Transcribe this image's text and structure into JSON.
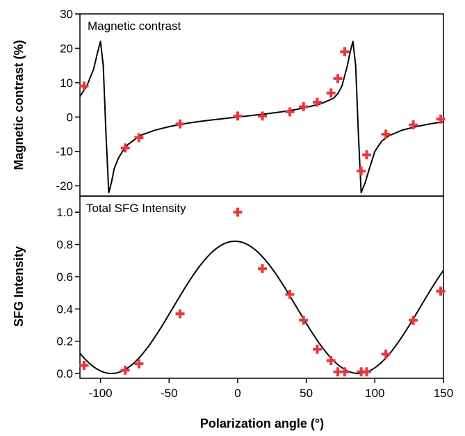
{
  "chart_data": [
    {
      "type": "scatter",
      "title": "Magnetic contrast",
      "ylabel": "Magnetic contrast (%)",
      "xlabel": "",
      "xlim": [
        -115,
        150
      ],
      "ylim": [
        -23,
        30
      ],
      "yticks": [
        30,
        20,
        10,
        0,
        -10,
        -20
      ],
      "yticklabels": [
        "30",
        "20",
        "10",
        "0",
        "-10",
        "-20"
      ],
      "marker_color": "#e8393a",
      "line_color": "#000000",
      "series": [
        {
          "kind": "markers",
          "x": [
            -112,
            -82,
            -72,
            -42,
            0,
            18,
            38,
            48,
            58,
            68,
            73,
            78,
            90,
            94,
            108,
            128,
            148
          ],
          "y": [
            9,
            -9,
            -6,
            -2,
            0.3,
            0.3,
            1.5,
            3,
            4.3,
            7,
            11.2,
            19,
            -15.7,
            -11,
            -5,
            -2.3,
            -0.6
          ]
        },
        {
          "kind": "line",
          "x": [
            -115,
            -110,
            -105,
            -102,
            -100,
            -98,
            -96,
            -94,
            -92,
            -90,
            -87,
            -84,
            -80,
            -75,
            -70,
            -60,
            -50,
            -40,
            -30,
            -20,
            -10,
            0,
            10,
            20,
            30,
            40,
            50,
            55,
            60,
            65,
            70,
            73,
            76,
            78,
            80,
            82,
            84,
            86,
            88,
            90,
            93,
            96,
            100,
            105,
            110,
            120,
            130,
            140,
            150
          ],
          "y": [
            6,
            9,
            14,
            19,
            22,
            15,
            -5,
            -22,
            -19,
            -15,
            -12,
            -10,
            -8,
            -6.5,
            -5.2,
            -3.8,
            -2.8,
            -2,
            -1.4,
            -0.9,
            -0.45,
            0,
            0.45,
            0.9,
            1.4,
            2,
            2.8,
            3.3,
            3.8,
            4.6,
            5.5,
            6.8,
            9,
            12,
            15,
            19,
            22,
            15,
            -5,
            -22,
            -19,
            -15,
            -10,
            -7,
            -5.5,
            -3.8,
            -2.8,
            -2,
            -1.4
          ]
        }
      ]
    },
    {
      "type": "scatter",
      "title": "Total SFG Intensity",
      "ylabel": "SFG Intensity",
      "xlabel": "Polarization angle (°)",
      "xlim": [
        -115,
        150
      ],
      "ylim": [
        -0.03,
        1.1
      ],
      "yticks": [
        1.0,
        0.8,
        0.6,
        0.4,
        0.2,
        0.0
      ],
      "yticklabels": [
        "1.0",
        "0.8",
        "0.6",
        "0.4",
        "0.2",
        "0.0"
      ],
      "xticks": [
        -100,
        -50,
        0,
        50,
        100,
        150
      ],
      "xticklabels": [
        "-100",
        "-50",
        "0",
        "50",
        "100",
        "150"
      ],
      "marker_color": "#e8393a",
      "line_color": "#000000",
      "series": [
        {
          "kind": "markers",
          "x": [
            -112,
            -82,
            -72,
            -42,
            0,
            18,
            38,
            48,
            58,
            68,
            73,
            78,
            90,
            94,
            108,
            128,
            148
          ],
          "y": [
            0.05,
            0.02,
            0.06,
            0.37,
            1.0,
            0.65,
            0.49,
            0.33,
            0.15,
            0.08,
            0.01,
            0.01,
            0.01,
            0.01,
            0.12,
            0.33,
            0.51
          ]
        },
        {
          "kind": "curve",
          "func": "amp*cos^2(x-center)",
          "amp": 0.82,
          "center": -2,
          "xmin": -115,
          "xmax": 150
        }
      ]
    }
  ]
}
